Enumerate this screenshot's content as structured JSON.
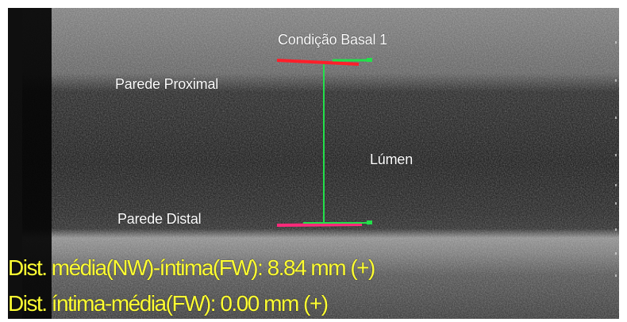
{
  "window": {
    "title": ""
  },
  "annotations": {
    "condition": "Condição Basal 1",
    "proximal_wall": "Parede Proximal",
    "lumen": "Lúmen",
    "distal_wall": "Parede Distal"
  },
  "measurements": {
    "mean_intima": "Dist. média(NW)-íntima(FW): 8.84 mm (+)",
    "intima_media": "Dist. íntima-média(FW): 0.00 mm (+)"
  },
  "colors": {
    "background": "#ffffff",
    "scan_background": "#151515",
    "proximal_caliper": "#ff1f2a",
    "distal_caliper": "#ff2a7a",
    "measure_line": "#22e04a",
    "label_text": "#ffffff",
    "readout_text": "#ffff33"
  },
  "icons": {
    "measurement_marker": "caliper-line"
  }
}
